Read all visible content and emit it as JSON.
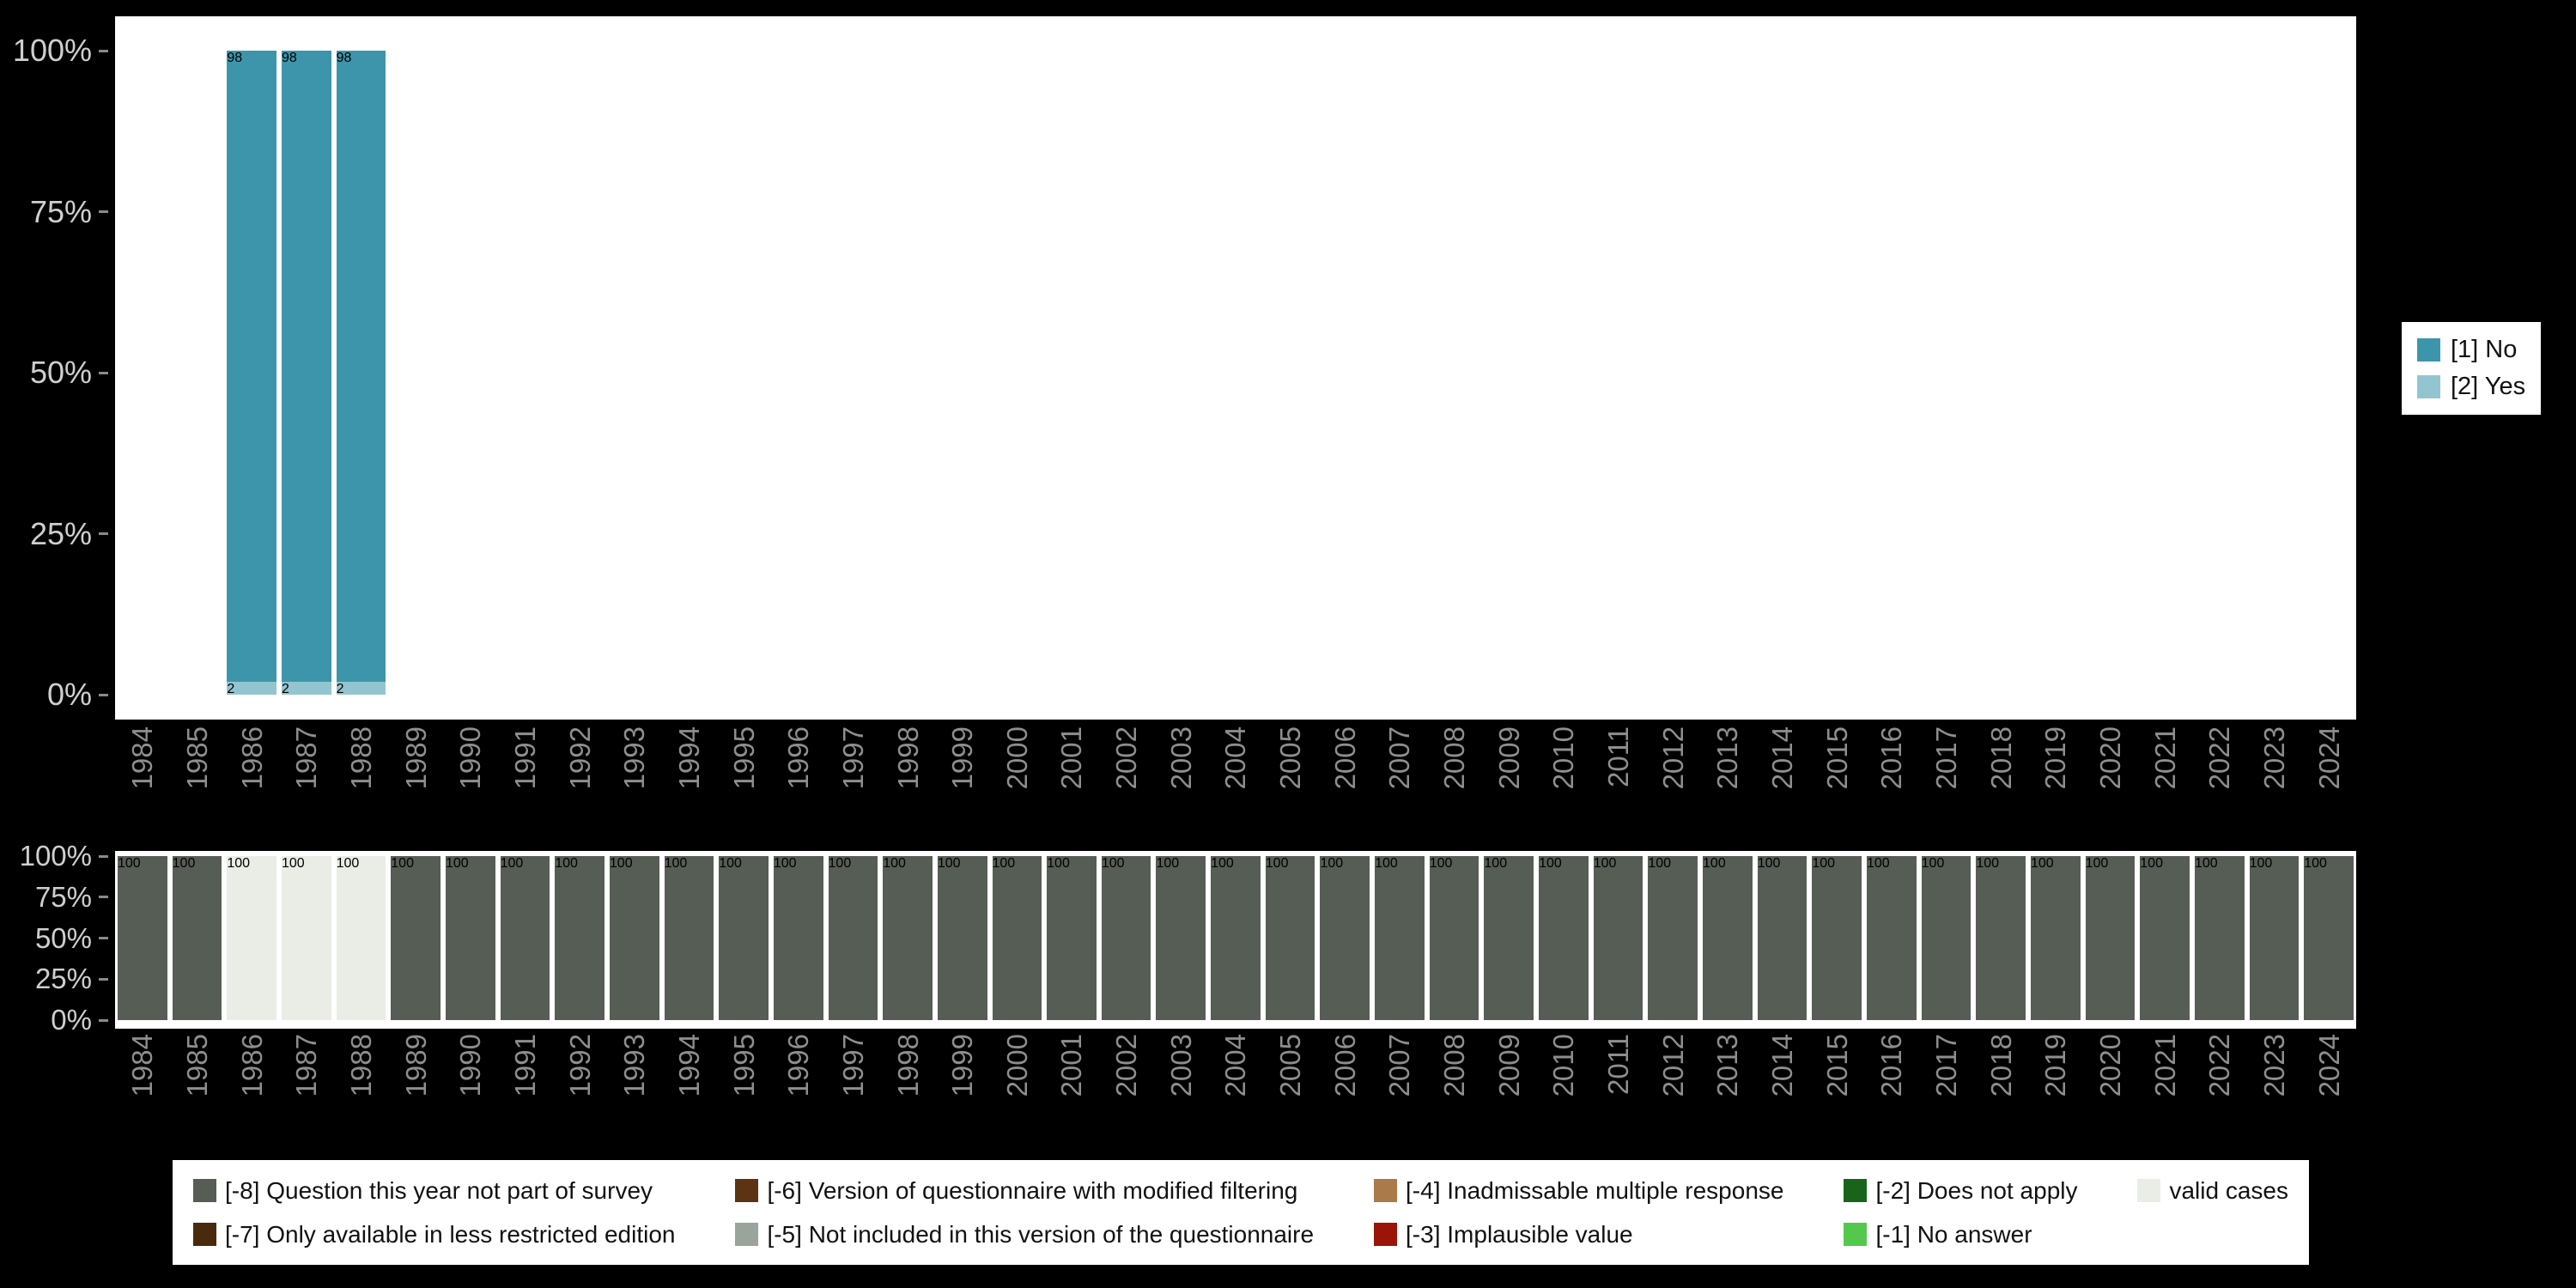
{
  "page": {
    "background": "#000000"
  },
  "chart_data": [
    {
      "id": "frequencies",
      "type": "bar",
      "stacked": true,
      "unit": "percent",
      "ylim": [
        0,
        100
      ],
      "grid": false,
      "legend_position": "right",
      "yticks": [
        "100%",
        "75%",
        "50%",
        "25%",
        "0%"
      ],
      "categories": [
        "1984",
        "1985",
        "1986",
        "1987",
        "1988",
        "1989",
        "1990",
        "1991",
        "1992",
        "1993",
        "1994",
        "1995",
        "1996",
        "1997",
        "1998",
        "1999",
        "2000",
        "2001",
        "2002",
        "2003",
        "2004",
        "2005",
        "2006",
        "2007",
        "2008",
        "2009",
        "2010",
        "2011",
        "2012",
        "2013",
        "2014",
        "2015",
        "2016",
        "2017",
        "2018",
        "2019",
        "2020",
        "2021",
        "2022",
        "2023",
        "2024"
      ],
      "series": [
        {
          "name": "[1] No",
          "color": "#3d95ab",
          "values": [
            0,
            0,
            98,
            98,
            98,
            0,
            0,
            0,
            0,
            0,
            0,
            0,
            0,
            0,
            0,
            0,
            0,
            0,
            0,
            0,
            0,
            0,
            0,
            0,
            0,
            0,
            0,
            0,
            0,
            0,
            0,
            0,
            0,
            0,
            0,
            0,
            0,
            0,
            0,
            0,
            0
          ]
        },
        {
          "name": "[2] Yes",
          "color": "#93c5d1",
          "values": [
            0,
            0,
            2,
            2,
            2,
            0,
            0,
            0,
            0,
            0,
            0,
            0,
            0,
            0,
            0,
            0,
            0,
            0,
            0,
            0,
            0,
            0,
            0,
            0,
            0,
            0,
            0,
            0,
            0,
            0,
            0,
            0,
            0,
            0,
            0,
            0,
            0,
            0,
            0,
            0,
            0
          ]
        }
      ]
    },
    {
      "id": "missings",
      "type": "bar",
      "stacked": true,
      "unit": "percent",
      "ylim": [
        0,
        100
      ],
      "grid": false,
      "legend_position": "bottom",
      "yticks": [
        "100%",
        "75%",
        "50%",
        "25%",
        "0%"
      ],
      "categories": [
        "1984",
        "1985",
        "1986",
        "1987",
        "1988",
        "1989",
        "1990",
        "1991",
        "1992",
        "1993",
        "1994",
        "1995",
        "1996",
        "1997",
        "1998",
        "1999",
        "2000",
        "2001",
        "2002",
        "2003",
        "2004",
        "2005",
        "2006",
        "2007",
        "2008",
        "2009",
        "2010",
        "2011",
        "2012",
        "2013",
        "2014",
        "2015",
        "2016",
        "2017",
        "2018",
        "2019",
        "2020",
        "2021",
        "2022",
        "2023",
        "2024"
      ],
      "series": [
        {
          "name": "[-8] Question this year not part of survey",
          "color": "#565d55",
          "values": [
            100,
            100,
            0,
            0,
            0,
            100,
            100,
            100,
            100,
            100,
            100,
            100,
            100,
            100,
            100,
            100,
            100,
            100,
            100,
            100,
            100,
            100,
            100,
            100,
            100,
            100,
            100,
            100,
            100,
            100,
            100,
            100,
            100,
            100,
            100,
            100,
            100,
            100,
            100,
            100,
            100
          ]
        },
        {
          "name": "valid cases",
          "color": "#e9ede6",
          "values": [
            0,
            0,
            100,
            100,
            100,
            0,
            0,
            0,
            0,
            0,
            0,
            0,
            0,
            0,
            0,
            0,
            0,
            0,
            0,
            0,
            0,
            0,
            0,
            0,
            0,
            0,
            0,
            0,
            0,
            0,
            0,
            0,
            0,
            0,
            0,
            0,
            0,
            0,
            0,
            0,
            0
          ]
        }
      ]
    }
  ],
  "legend_right": {
    "items": [
      {
        "label": "[1] No",
        "color": "#3d95ab"
      },
      {
        "label": "[2] Yes",
        "color": "#93c5d1"
      }
    ]
  },
  "legend_bottom": {
    "items": [
      {
        "label": "[-8] Question this year not part of survey",
        "color": "#565d55"
      },
      {
        "label": "[-7] Only available in less restricted edition",
        "color": "#4a2a0c"
      },
      {
        "label": "[-6] Version of questionnaire with modified filtering",
        "color": "#5c3414"
      },
      {
        "label": "[-5] Not included in this version of the questionnaire",
        "color": "#9aa49b"
      },
      {
        "label": "[-4] Inadmissable multiple response",
        "color": "#aa7a4b"
      },
      {
        "label": "[-3] Implausible value",
        "color": "#9c1408"
      },
      {
        "label": "[-2] Does not apply",
        "color": "#17641a"
      },
      {
        "label": "[-1] No answer",
        "color": "#54c84c"
      },
      {
        "label": "valid cases",
        "color": "#e9ede6"
      }
    ]
  }
}
